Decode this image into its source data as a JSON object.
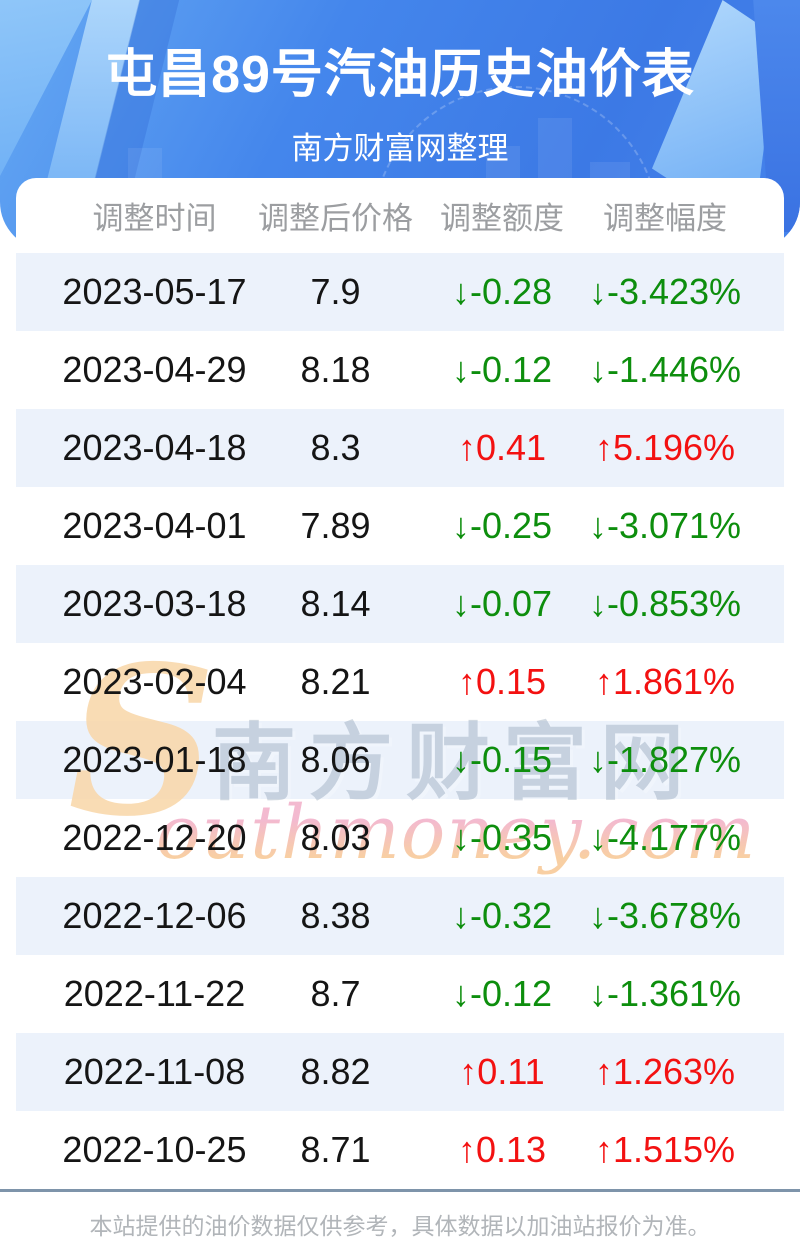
{
  "header": {
    "title": "屯昌89号汽油历史油价表",
    "subtitle": "南方财富网整理"
  },
  "table": {
    "columns": [
      "调整时间",
      "调整后价格",
      "调整额度",
      "调整幅度"
    ],
    "rows": [
      {
        "date": "2023-05-17",
        "price": "7.9",
        "change": "↓-0.28",
        "percent": "↓-3.423%",
        "direction": "down"
      },
      {
        "date": "2023-04-29",
        "price": "8.18",
        "change": "↓-0.12",
        "percent": "↓-1.446%",
        "direction": "down"
      },
      {
        "date": "2023-04-18",
        "price": "8.3",
        "change": "↑0.41",
        "percent": "↑5.196%",
        "direction": "up"
      },
      {
        "date": "2023-04-01",
        "price": "7.89",
        "change": "↓-0.25",
        "percent": "↓-3.071%",
        "direction": "down"
      },
      {
        "date": "2023-03-18",
        "price": "8.14",
        "change": "↓-0.07",
        "percent": "↓-0.853%",
        "direction": "down"
      },
      {
        "date": "2023-02-04",
        "price": "8.21",
        "change": "↑0.15",
        "percent": "↑1.861%",
        "direction": "up"
      },
      {
        "date": "2023-01-18",
        "price": "8.06",
        "change": "↓-0.15",
        "percent": "↓-1.827%",
        "direction": "down"
      },
      {
        "date": "2022-12-20",
        "price": "8.03",
        "change": "↓-0.35",
        "percent": "↓-4.177%",
        "direction": "down"
      },
      {
        "date": "2022-12-06",
        "price": "8.38",
        "change": "↓-0.32",
        "percent": "↓-3.678%",
        "direction": "down"
      },
      {
        "date": "2022-11-22",
        "price": "8.7",
        "change": "↓-0.12",
        "percent": "↓-1.361%",
        "direction": "down"
      },
      {
        "date": "2022-11-08",
        "price": "8.82",
        "change": "↑0.11",
        "percent": "↑1.263%",
        "direction": "up"
      },
      {
        "date": "2022-10-25",
        "price": "8.71",
        "change": "↑0.13",
        "percent": "↑1.515%",
        "direction": "up"
      }
    ]
  },
  "watermark": {
    "s_glyph": "S",
    "chinese": "南方财富网",
    "english": "outhmoney.com"
  },
  "footer": {
    "disclaimer": "本站提供的油价数据仅供参考，具体数据以加油站报价为准。"
  },
  "colors": {
    "up_red": "#f31111",
    "down_green": "#0d8e0d",
    "row_stripe": "#ecf2fb",
    "header_blue": "#3f80e9",
    "divider": "#7e94aa",
    "column_header_text": "#9c9ea1",
    "watermark_orange": "#f9d6a8",
    "watermark_pink": "#f2aec8"
  },
  "chart_data": {
    "type": "table",
    "title": "屯昌89号汽油历史油价表",
    "columns": [
      "调整时间",
      "调整后价格",
      "调整额度",
      "调整幅度"
    ],
    "rows": [
      [
        "2023-05-17",
        7.9,
        -0.28,
        "-3.423%"
      ],
      [
        "2023-04-29",
        8.18,
        -0.12,
        "-1.446%"
      ],
      [
        "2023-04-18",
        8.3,
        0.41,
        "+5.196%"
      ],
      [
        "2023-04-01",
        7.89,
        -0.25,
        "-3.071%"
      ],
      [
        "2023-03-18",
        8.14,
        -0.07,
        "-0.853%"
      ],
      [
        "2023-02-04",
        8.21,
        0.15,
        "+1.861%"
      ],
      [
        "2023-01-18",
        8.06,
        -0.15,
        "-1.827%"
      ],
      [
        "2022-12-20",
        8.03,
        -0.35,
        "-4.177%"
      ],
      [
        "2022-12-06",
        8.38,
        -0.32,
        "-3.678%"
      ],
      [
        "2022-11-22",
        8.7,
        -0.12,
        "-1.361%"
      ],
      [
        "2022-11-08",
        8.82,
        0.11,
        "+1.263%"
      ],
      [
        "2022-10-25",
        8.71,
        0.13,
        "+1.515%"
      ]
    ],
    "notes": "green = price decrease, red = price increase"
  }
}
